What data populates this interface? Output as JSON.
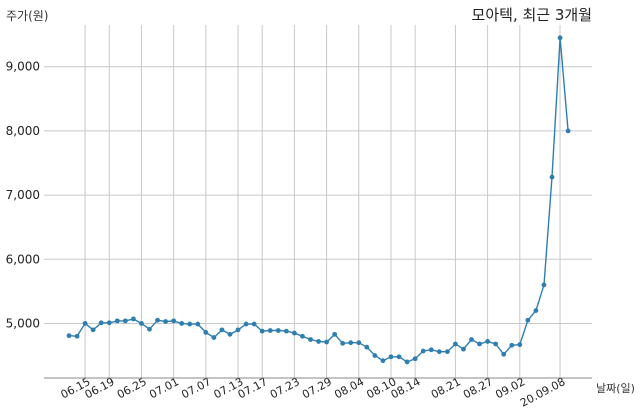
{
  "chart_data": {
    "type": "line",
    "title": "모아텍, 최근 3개월",
    "xlabel": "날짜(일)",
    "ylabel": "주가(원)",
    "ylim": [
      4150,
      9650
    ],
    "yticks": [
      5000,
      6000,
      7000,
      8000,
      9000
    ],
    "ytick_labels": [
      "5,000",
      "6,000",
      "7,000",
      "8,000",
      "9,000"
    ],
    "xtick_labels": [
      "06.15",
      "06.19",
      "06.25",
      "07.01",
      "07.07",
      "07.13",
      "07.17",
      "07.23",
      "07.29",
      "08.04",
      "08.10",
      "08.14",
      "08.21",
      "08.27",
      "09.02",
      "20.09.08"
    ],
    "xtick_index": [
      2,
      5,
      9,
      13,
      17,
      21,
      24,
      28,
      32,
      36,
      40,
      43,
      48,
      52,
      56,
      61
    ],
    "grid": true,
    "color": "#2e7fb0",
    "series": [
      {
        "values": [
          4810,
          4800,
          5000,
          4900,
          5010,
          5010,
          5040,
          5040,
          5070,
          5000,
          4910,
          5050,
          5030,
          5040,
          5000,
          4990,
          4990,
          4860,
          4780,
          4900,
          4830,
          4900,
          4990,
          4990,
          4880,
          4890,
          4890,
          4880,
          4850,
          4800,
          4750,
          4720,
          4710,
          4830,
          4690,
          4700,
          4700,
          4630,
          4500,
          4420,
          4480,
          4480,
          4400,
          4450,
          4570,
          4590,
          4560,
          4560,
          4680,
          4600,
          4750,
          4680,
          4720,
          4680,
          4520,
          4660,
          4670,
          5050,
          5200,
          5600,
          7280,
          9450,
          8000
        ]
      }
    ]
  }
}
